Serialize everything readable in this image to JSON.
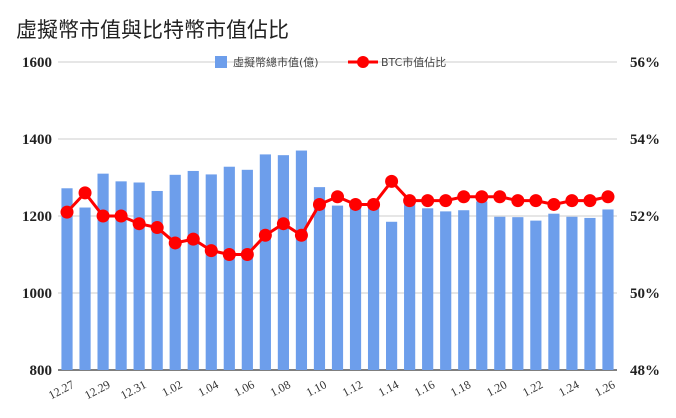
{
  "chart_data": {
    "type": "bar+line",
    "title": "虛擬幣市值與比特幣市值佔比",
    "x_tick_labels": [
      "12.27",
      "12.29",
      "12.31",
      "1.02",
      "1.04",
      "1.06",
      "1.08",
      "1.10",
      "1.12",
      "1.14",
      "1.16",
      "1.18",
      "1.20",
      "1.22",
      "1.24",
      "1.26"
    ],
    "left_axis": {
      "min": 800,
      "max": 1600,
      "ticks": [
        "800",
        "1000",
        "1200",
        "1400",
        "1600"
      ]
    },
    "right_axis": {
      "min": 48,
      "max": 56,
      "ticks": [
        "48%",
        "50%",
        "52%",
        "54%",
        "56%"
      ]
    },
    "series": [
      {
        "name": "虛擬幣總市值(億)",
        "type": "bar",
        "axis": "left",
        "color": "#6d9eeb",
        "values": [
          1272,
          1222,
          1310,
          1290,
          1287,
          1265,
          1307,
          1317,
          1308,
          1328,
          1320,
          1360,
          1358,
          1370,
          1275,
          1227,
          1226,
          1234,
          1185,
          1235,
          1220,
          1212,
          1215,
          1238,
          1198,
          1197,
          1188,
          1206,
          1198,
          1195,
          1217
        ]
      },
      {
        "name": "BTC市值佔比",
        "type": "line",
        "axis": "right",
        "color": "#ff0000",
        "values": [
          52.1,
          52.6,
          52.0,
          52.0,
          51.8,
          51.7,
          51.3,
          51.4,
          51.1,
          51.0,
          51.0,
          51.5,
          51.8,
          51.5,
          52.3,
          52.5,
          52.3,
          52.3,
          52.9,
          52.4,
          52.4,
          52.4,
          52.5,
          52.5,
          52.5,
          52.4,
          52.4,
          52.3,
          52.4,
          52.4,
          52.5
        ]
      }
    ],
    "grid": true,
    "legend": "top-center"
  }
}
